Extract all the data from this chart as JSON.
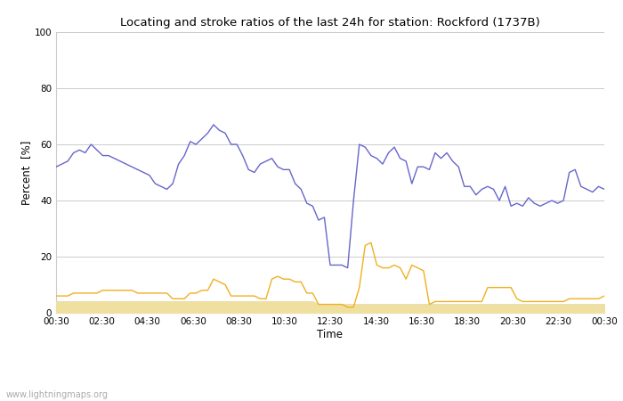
{
  "title": "Locating and stroke ratios of the last 24h for station: Rockford (1737B)",
  "xlabel": "Time",
  "ylabel": "Percent  [%]",
  "xlim_labels": [
    "00:30",
    "02:30",
    "04:30",
    "06:30",
    "08:30",
    "10:30",
    "12:30",
    "14:30",
    "16:30",
    "18:30",
    "20:30",
    "22:30",
    "00:30"
  ],
  "ylim": [
    0,
    100
  ],
  "yticks": [
    0,
    20,
    40,
    60,
    80,
    100
  ],
  "background_color": "#ffffff",
  "watermark": "www.lightningmaps.org",
  "locating_ratio_color": "#f0b020",
  "stroke_ratio_color": "#6666cc",
  "whole_locating_fill_color": "#f0e0a0",
  "whole_stroke_fill_color": "#c8c8e0",
  "stroke_ratio_station": [
    52,
    53,
    54,
    57,
    58,
    57,
    60,
    58,
    56,
    56,
    55,
    54,
    53,
    52,
    51,
    50,
    49,
    46,
    45,
    44,
    46,
    53,
    56,
    61,
    60,
    62,
    64,
    67,
    65,
    64,
    60,
    60,
    56,
    51,
    50,
    53,
    54,
    55,
    52,
    51,
    51,
    46,
    44,
    39,
    38,
    33,
    34,
    17,
    17,
    17,
    16,
    40,
    60,
    59,
    56,
    55,
    53,
    57,
    59,
    55,
    54,
    46,
    52,
    52,
    51,
    57,
    55,
    57,
    54,
    52,
    45,
    45,
    42,
    44,
    45,
    44,
    40,
    45,
    38,
    39,
    38,
    41,
    39,
    38,
    39,
    40,
    39,
    40,
    50,
    51,
    45,
    44,
    43,
    45,
    44
  ],
  "locating_ratio_station": [
    6,
    6,
    6,
    7,
    7,
    7,
    7,
    7,
    8,
    8,
    8,
    8,
    8,
    8,
    7,
    7,
    7,
    7,
    7,
    7,
    5,
    5,
    5,
    7,
    7,
    8,
    8,
    12,
    11,
    10,
    6,
    6,
    6,
    6,
    6,
    5,
    5,
    12,
    13,
    12,
    12,
    11,
    11,
    7,
    7,
    3,
    3,
    3,
    3,
    3,
    2,
    2,
    9,
    24,
    25,
    17,
    16,
    16,
    17,
    16,
    12,
    17,
    16,
    15,
    3,
    4,
    4,
    4,
    4,
    4,
    4,
    4,
    4,
    4,
    9,
    9,
    9,
    9,
    9,
    5,
    4,
    4,
    4,
    4,
    4,
    4,
    4,
    4,
    5,
    5,
    5,
    5,
    5,
    5,
    6
  ],
  "whole_locating_ratio": [
    4,
    4,
    4,
    4,
    4,
    4,
    4,
    4,
    4,
    4,
    4,
    4,
    4,
    4,
    4,
    4,
    4,
    4,
    4,
    4,
    4,
    4,
    4,
    4,
    4,
    4,
    4,
    4,
    4,
    4,
    4,
    4,
    4,
    4,
    4,
    4,
    4,
    4,
    4,
    4,
    4,
    4,
    4,
    4,
    4,
    3,
    3,
    3,
    3,
    3,
    3,
    3,
    3,
    3,
    3,
    3,
    3,
    3,
    3,
    3,
    3,
    3,
    3,
    3,
    3,
    3,
    3,
    3,
    3,
    3,
    3,
    3,
    3,
    3,
    3,
    3,
    3,
    3,
    3,
    3,
    3,
    3,
    3,
    3,
    3,
    3,
    3,
    3,
    3,
    3,
    3,
    3,
    3,
    3,
    3
  ],
  "whole_stroke_ratio": [
    4,
    4,
    4,
    4,
    4,
    4,
    4,
    4,
    4,
    4,
    4,
    4,
    4,
    4,
    4,
    4,
    4,
    4,
    4,
    4,
    4,
    4,
    4,
    4,
    4,
    4,
    4,
    4,
    4,
    4,
    4,
    4,
    4,
    4,
    4,
    4,
    4,
    4,
    4,
    4,
    4,
    4,
    4,
    4,
    4,
    3,
    3,
    3,
    3,
    3,
    3,
    3,
    3,
    3,
    3,
    3,
    3,
    3,
    3,
    3,
    3,
    3,
    3,
    3,
    3,
    3,
    3,
    3,
    3,
    3,
    3,
    3,
    3,
    3,
    3,
    3,
    3,
    3,
    3,
    3,
    3,
    3,
    3,
    3,
    3,
    3,
    3,
    3,
    3,
    3,
    3,
    3,
    3,
    3,
    3
  ]
}
